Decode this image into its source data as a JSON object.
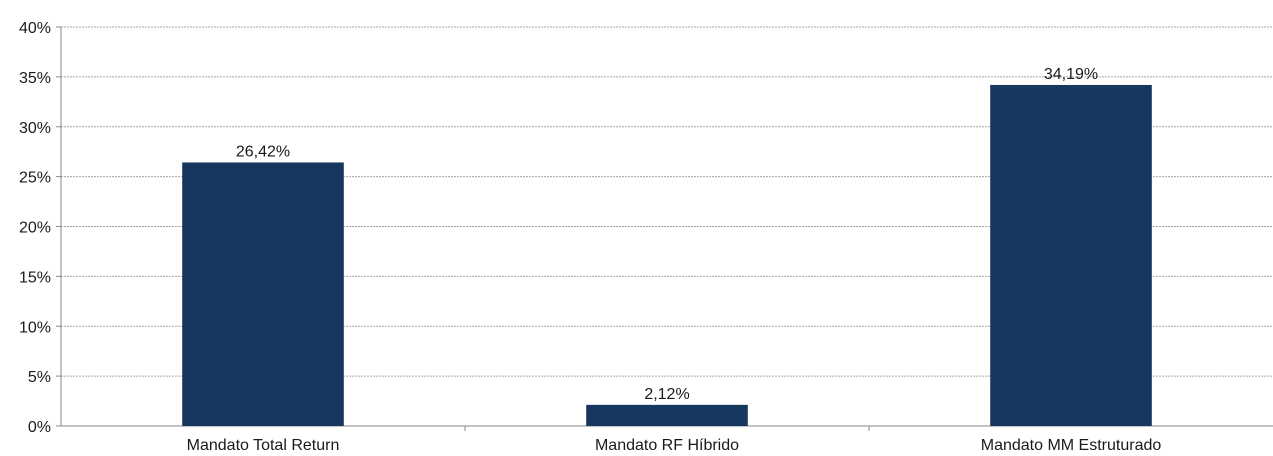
{
  "chart_data": {
    "type": "bar",
    "categories": [
      "Mandato Total Return",
      "Mandato RF Híbrido",
      "Mandato MM Estruturado"
    ],
    "values": [
      26.42,
      2.12,
      34.19
    ],
    "data_labels": [
      "26,42%",
      "2,12%",
      "34,19%"
    ],
    "title": "",
    "xlabel": "",
    "ylabel": "",
    "ylim": [
      0,
      40
    ],
    "y_ticks": [
      0,
      5,
      10,
      15,
      20,
      25,
      30,
      35,
      40
    ],
    "y_tick_labels": [
      "0%",
      "5%",
      "10%",
      "15%",
      "20%",
      "25%",
      "30%",
      "35%",
      "40%"
    ],
    "grid": true,
    "legend": "none",
    "colors": {
      "bar": "#17375e",
      "grid": "#a6a6a6",
      "axis": "#888888"
    }
  }
}
